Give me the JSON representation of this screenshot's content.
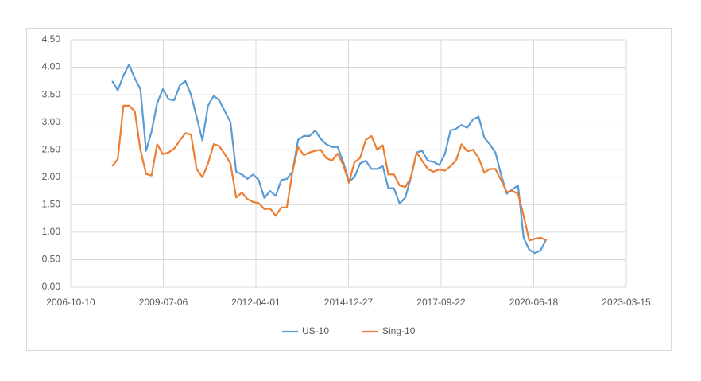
{
  "chart_data": {
    "type": "line",
    "x": [
      "2008-01-01",
      "2008-03-01",
      "2008-05-01",
      "2008-07-01",
      "2008-09-01",
      "2008-11-01",
      "2009-01-01",
      "2009-03-01",
      "2009-05-01",
      "2009-07-01",
      "2009-09-01",
      "2009-11-01",
      "2010-01-01",
      "2010-03-01",
      "2010-05-01",
      "2010-07-01",
      "2010-09-01",
      "2010-11-01",
      "2011-01-01",
      "2011-03-01",
      "2011-05-01",
      "2011-07-01",
      "2011-09-01",
      "2011-11-01",
      "2012-01-01",
      "2012-03-01",
      "2012-05-01",
      "2012-07-01",
      "2012-09-01",
      "2012-11-01",
      "2013-01-01",
      "2013-03-01",
      "2013-05-01",
      "2013-07-01",
      "2013-09-01",
      "2013-11-01",
      "2014-01-01",
      "2014-03-01",
      "2014-05-01",
      "2014-07-01",
      "2014-09-01",
      "2014-11-01",
      "2015-01-01",
      "2015-03-01",
      "2015-05-01",
      "2015-07-01",
      "2015-09-01",
      "2015-11-01",
      "2016-01-01",
      "2016-03-01",
      "2016-05-01",
      "2016-07-01",
      "2016-09-01",
      "2016-11-01",
      "2017-01-01",
      "2017-03-01",
      "2017-05-01",
      "2017-07-01",
      "2017-09-01",
      "2017-11-01",
      "2018-01-01",
      "2018-03-01",
      "2018-05-01",
      "2018-07-01",
      "2018-09-01",
      "2018-11-01",
      "2019-01-01",
      "2019-03-01",
      "2019-05-01",
      "2019-07-01",
      "2019-09-01",
      "2019-11-01",
      "2020-01-01",
      "2020-03-01",
      "2020-05-01",
      "2020-07-01",
      "2020-09-01",
      "2020-11-01"
    ],
    "series": [
      {
        "name": "US-10",
        "color": "#5b9bd5",
        "values": [
          3.75,
          3.58,
          3.85,
          4.05,
          3.8,
          3.6,
          2.48,
          2.83,
          3.35,
          3.6,
          3.42,
          3.4,
          3.67,
          3.75,
          3.5,
          3.1,
          2.67,
          3.3,
          3.48,
          3.4,
          3.2,
          3.0,
          2.1,
          2.05,
          1.97,
          2.05,
          1.95,
          1.62,
          1.75,
          1.66,
          1.95,
          1.97,
          2.1,
          2.68,
          2.75,
          2.75,
          2.85,
          2.7,
          2.6,
          2.55,
          2.55,
          2.27,
          1.92,
          2.0,
          2.25,
          2.3,
          2.15,
          2.15,
          2.2,
          1.8,
          1.8,
          1.52,
          1.63,
          2.0,
          2.45,
          2.48,
          2.3,
          2.28,
          2.22,
          2.42,
          2.85,
          2.88,
          2.95,
          2.9,
          3.05,
          3.1,
          2.72,
          2.6,
          2.45,
          2.05,
          1.7,
          1.78,
          1.85,
          0.9,
          0.68,
          0.62,
          0.67,
          0.87
        ]
      },
      {
        "name": "Sing-10",
        "color": "#ed7d31",
        "values": [
          2.2,
          2.33,
          3.3,
          3.3,
          3.2,
          2.5,
          2.06,
          2.03,
          2.6,
          2.42,
          2.45,
          2.52,
          2.67,
          2.8,
          2.78,
          2.15,
          2.0,
          2.25,
          2.6,
          2.57,
          2.42,
          2.25,
          1.63,
          1.72,
          1.6,
          1.55,
          1.53,
          1.42,
          1.43,
          1.3,
          1.45,
          1.45,
          2.1,
          2.55,
          2.4,
          2.45,
          2.48,
          2.5,
          2.35,
          2.3,
          2.43,
          2.22,
          1.9,
          2.27,
          2.35,
          2.68,
          2.75,
          2.5,
          2.58,
          2.05,
          2.05,
          1.85,
          1.82,
          2.0,
          2.45,
          2.3,
          2.15,
          2.1,
          2.14,
          2.12,
          2.2,
          2.3,
          2.6,
          2.47,
          2.5,
          2.35,
          2.08,
          2.15,
          2.15,
          1.95,
          1.73,
          1.75,
          1.7,
          1.3,
          0.85,
          0.88,
          0.9,
          0.85
        ]
      }
    ],
    "xlim": [
      "2006-10-10",
      "2023-03-15"
    ],
    "xticks": [
      "2006-10-10",
      "2009-07-06",
      "2012-04-01",
      "2014-12-27",
      "2017-09-22",
      "2020-06-18",
      "2023-03-15"
    ],
    "ylim": [
      0,
      4.5
    ],
    "yticks": [
      {
        "value": 0,
        "label": "0.00"
      },
      {
        "value": 0.5,
        "label": "0.50"
      },
      {
        "value": 1,
        "label": "1.00"
      },
      {
        "value": 1.5,
        "label": "1.50"
      },
      {
        "value": 2,
        "label": "2.00"
      },
      {
        "value": 2.5,
        "label": "2.50"
      },
      {
        "value": 3,
        "label": "3.00"
      },
      {
        "value": 3.5,
        "label": "3.50"
      },
      {
        "value": 4,
        "label": "4.00"
      },
      {
        "value": 4.5,
        "label": "4.50"
      }
    ],
    "grid": true,
    "legend": "bottom"
  }
}
